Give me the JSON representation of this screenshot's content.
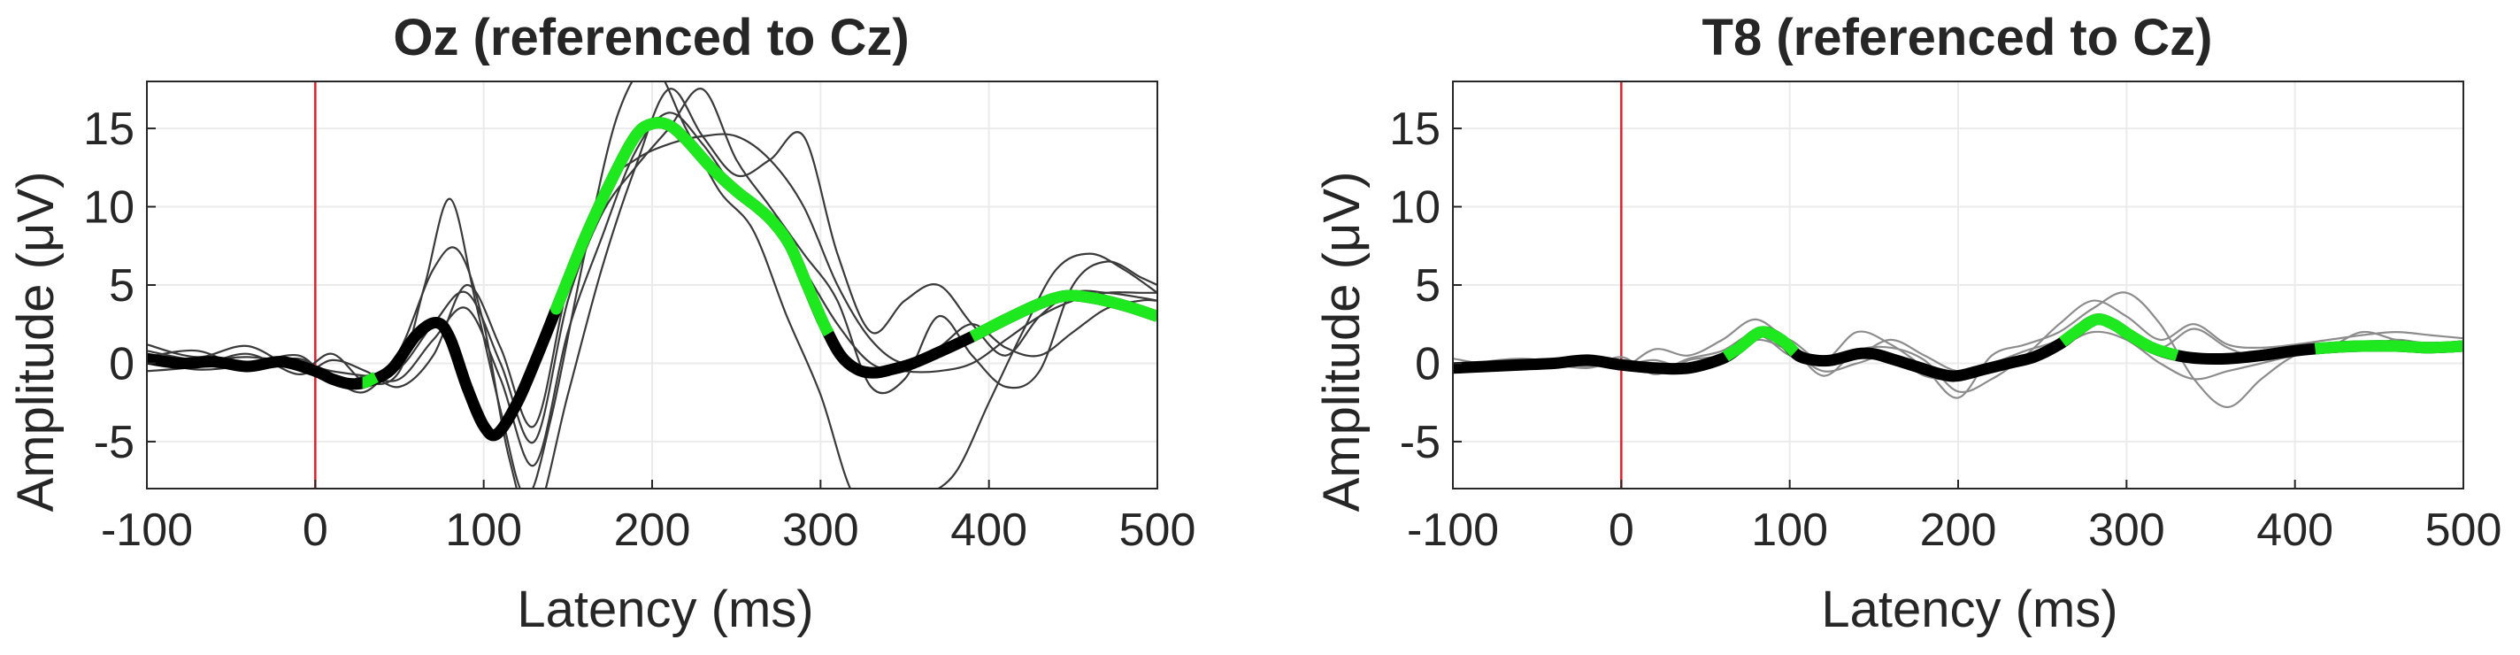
{
  "chart_data": [
    {
      "type": "line",
      "title": "Oz (referenced to Cz)",
      "xlabel": "Latency (ms)",
      "ylabel": "Amplitude (μV)",
      "xlim": [
        -100,
        500
      ],
      "ylim": [
        -8,
        18
      ],
      "xticks": [
        -100,
        0,
        100,
        200,
        300,
        400,
        500
      ],
      "yticks": [
        -5,
        0,
        5,
        10,
        15
      ],
      "grid": true,
      "stimulus_onset_ms": 0,
      "individual_traces": [
        {
          "name": "trace-1",
          "x": [
            -100,
            -70,
            -40,
            -10,
            10,
            30,
            50,
            65,
            80,
            95,
            110,
            125,
            140,
            160,
            180,
            200,
            220,
            240,
            260,
            280,
            300,
            320,
            340,
            360,
            380,
            400,
            420,
            440,
            460,
            480,
            500
          ],
          "y": [
            1.2,
            0.4,
            1.1,
            -0.4,
            0.6,
            -1.2,
            -0.5,
            5.0,
            10.5,
            4.0,
            -3.0,
            -8.5,
            -3.5,
            7.0,
            16.0,
            19.0,
            15.0,
            11.0,
            8.5,
            3.0,
            -2.0,
            -8.5,
            -9.0,
            -8.5,
            -7.0,
            -2.5,
            2.0,
            6.0,
            7.0,
            6.0,
            4.5
          ]
        },
        {
          "name": "trace-2",
          "x": [
            -100,
            -70,
            -40,
            -10,
            10,
            30,
            50,
            70,
            85,
            100,
            115,
            130,
            150,
            170,
            190,
            210,
            230,
            250,
            270,
            290,
            310,
            330,
            350,
            370,
            390,
            410,
            430,
            450,
            470,
            490,
            500
          ],
          "y": [
            0.4,
            0.8,
            -0.3,
            0.3,
            -1.0,
            -1.8,
            0.8,
            6.0,
            7.2,
            2.5,
            -6.0,
            -10.0,
            -2.0,
            6.0,
            12.5,
            17.5,
            14.5,
            12.0,
            13.0,
            14.5,
            7.0,
            2.0,
            4.0,
            5.0,
            2.5,
            0.5,
            3.0,
            4.5,
            4.5,
            4.2,
            4.0
          ]
        },
        {
          "name": "trace-3",
          "x": [
            -100,
            -70,
            -40,
            -10,
            10,
            30,
            50,
            70,
            90,
            110,
            130,
            150,
            170,
            190,
            210,
            230,
            250,
            270,
            290,
            310,
            330,
            350,
            370,
            390,
            410,
            430,
            450,
            470,
            490,
            500
          ],
          "y": [
            -0.5,
            -0.2,
            0.6,
            -0.7,
            0.2,
            -0.5,
            -1.5,
            0.5,
            5.0,
            1.0,
            -4.0,
            5.0,
            11.0,
            13.0,
            14.0,
            14.5,
            14.5,
            13.0,
            10.0,
            5.0,
            1.5,
            0.0,
            1.0,
            2.5,
            1.0,
            0.5,
            2.0,
            3.5,
            4.0,
            4.0
          ]
        },
        {
          "name": "trace-4",
          "x": [
            -100,
            -70,
            -40,
            -10,
            10,
            30,
            50,
            70,
            90,
            110,
            130,
            150,
            170,
            190,
            210,
            230,
            250,
            270,
            290,
            310,
            330,
            350,
            370,
            390,
            410,
            430,
            450,
            470,
            490,
            500
          ],
          "y": [
            0.2,
            -0.4,
            -0.1,
            0.5,
            -1.2,
            -0.8,
            -0.3,
            2.5,
            4.5,
            0.0,
            -5.0,
            4.0,
            9.5,
            12.5,
            15.0,
            17.5,
            13.0,
            10.0,
            7.0,
            4.0,
            -1.5,
            -1.0,
            3.0,
            0.5,
            -1.5,
            -0.5,
            5.0,
            6.5,
            5.5,
            5.0
          ]
        },
        {
          "name": "trace-5",
          "x": [
            -100,
            -70,
            -40,
            -10,
            10,
            30,
            50,
            70,
            90,
            110,
            130,
            150,
            170,
            190,
            210,
            230,
            250,
            270,
            290,
            310,
            330,
            350,
            370,
            390,
            410,
            430,
            450,
            470,
            490,
            500
          ],
          "y": [
            0.8,
            0.2,
            0.4,
            0.0,
            -0.5,
            -0.8,
            -1.0,
            1.5,
            3.5,
            -1.0,
            -6.5,
            2.0,
            8.0,
            13.5,
            16.0,
            14.0,
            11.0,
            9.0,
            6.0,
            2.5,
            0.0,
            -0.5,
            -0.5,
            0.0,
            1.5,
            3.0,
            4.0,
            4.5,
            4.5,
            4.5
          ]
        }
      ],
      "average": {
        "x": [
          -100,
          -80,
          -60,
          -40,
          -20,
          0,
          10,
          20,
          30,
          45,
          60,
          72,
          80,
          90,
          100,
          108,
          120,
          132,
          145,
          160,
          175,
          190,
          200,
          210,
          220,
          235,
          250,
          262,
          272,
          282,
          292,
          302,
          312,
          322,
          332,
          342,
          355,
          370,
          390,
          410,
          430,
          445,
          460,
          480,
          500
        ],
        "y": [
          0.3,
          0.0,
          0.1,
          -0.2,
          0.1,
          -0.5,
          -1.0,
          -1.3,
          -1.2,
          -0.4,
          1.8,
          2.6,
          1.6,
          -1.5,
          -4.0,
          -4.5,
          -2.5,
          0.5,
          4.0,
          8.0,
          11.5,
          14.5,
          15.3,
          15.2,
          14.3,
          12.5,
          11.0,
          10.0,
          9.0,
          7.5,
          5.0,
          2.5,
          0.5,
          -0.4,
          -0.6,
          -0.4,
          0.0,
          0.7,
          1.7,
          2.8,
          3.8,
          4.3,
          4.2,
          3.7,
          3.0
        ]
      },
      "significant_windows_ms": [
        [
          28,
          36
        ],
        [
          143,
          305
        ],
        [
          390,
          500
        ]
      ]
    },
    {
      "type": "line",
      "title": "T8 (referenced to Cz)",
      "xlabel": "Latency (ms)",
      "ylabel": "Amplitude (μV)",
      "xlim": [
        -100,
        500
      ],
      "ylim": [
        -8,
        18
      ],
      "xticks": [
        -100,
        0,
        100,
        200,
        300,
        400,
        500
      ],
      "yticks": [
        -5,
        0,
        5,
        10,
        15
      ],
      "grid": true,
      "stimulus_onset_ms": 0,
      "individual_traces": [
        {
          "name": "trace-1",
          "x": [
            -100,
            -60,
            -20,
            0,
            20,
            40,
            60,
            80,
            100,
            120,
            140,
            160,
            180,
            200,
            220,
            240,
            260,
            280,
            300,
            320,
            340,
            360,
            380,
            400,
            420,
            440,
            460,
            480,
            500
          ],
          "y": [
            -0.4,
            0.2,
            0.1,
            -0.3,
            0.9,
            0.5,
            1.5,
            2.8,
            1.2,
            -0.8,
            0.8,
            1.0,
            0.2,
            -1.8,
            -1.0,
            0.5,
            2.5,
            4.0,
            3.0,
            1.5,
            2.5,
            1.2,
            1.0,
            1.2,
            1.5,
            1.8,
            2.0,
            1.8,
            1.6
          ]
        },
        {
          "name": "trace-2",
          "x": [
            -100,
            -60,
            -20,
            0,
            20,
            40,
            60,
            80,
            100,
            120,
            140,
            160,
            180,
            200,
            220,
            240,
            260,
            280,
            300,
            320,
            340,
            360,
            380,
            400,
            420,
            440,
            460,
            480,
            500
          ],
          "y": [
            -0.2,
            0.3,
            -0.2,
            0.2,
            -0.5,
            0.3,
            0.8,
            2.0,
            1.5,
            0.2,
            2.0,
            1.2,
            -0.3,
            -2.2,
            0.5,
            1.2,
            2.0,
            3.5,
            4.5,
            2.5,
            -1.0,
            -2.8,
            -1.0,
            0.5,
            1.0,
            2.0,
            1.5,
            1.2,
            1.0
          ]
        },
        {
          "name": "trace-3",
          "x": [
            -100,
            -60,
            -20,
            0,
            20,
            40,
            60,
            80,
            100,
            120,
            140,
            160,
            180,
            200,
            220,
            240,
            260,
            280,
            300,
            320,
            340,
            360,
            380,
            400,
            420,
            440,
            460,
            480,
            500
          ],
          "y": [
            0.3,
            -0.3,
            0.4,
            -0.1,
            0.2,
            -0.4,
            0.0,
            1.8,
            0.5,
            0.0,
            0.5,
            1.5,
            0.5,
            -0.5,
            0.0,
            0.8,
            1.5,
            3.0,
            2.0,
            1.0,
            2.2,
            1.0,
            0.3,
            0.5,
            0.8,
            1.0,
            1.5,
            1.2,
            1.0
          ]
        },
        {
          "name": "trace-4",
          "x": [
            -100,
            -60,
            -20,
            0,
            20,
            40,
            60,
            80,
            100,
            120,
            140,
            160,
            180,
            200,
            220,
            240,
            260,
            280,
            300,
            320,
            340,
            360,
            380,
            400,
            420,
            440,
            460,
            480,
            500
          ],
          "y": [
            -0.6,
            0.1,
            -0.3,
            0.4,
            -0.7,
            0.2,
            0.5,
            1.5,
            0.8,
            -0.5,
            0.0,
            0.5,
            -0.8,
            -1.0,
            -0.5,
            0.0,
            1.0,
            2.0,
            1.5,
            0.0,
            -1.0,
            -0.5,
            0.0,
            0.5,
            0.8,
            1.0,
            1.2,
            1.0,
            1.2
          ]
        }
      ],
      "average": {
        "x": [
          -100,
          -80,
          -60,
          -40,
          -20,
          0,
          20,
          40,
          60,
          70,
          83,
          95,
          105,
          115,
          125,
          140,
          150,
          160,
          175,
          190,
          200,
          215,
          230,
          245,
          260,
          270,
          282,
          292,
          302,
          315,
          330,
          345,
          360,
          380,
          400,
          420,
          440,
          460,
          480,
          500
        ],
        "y": [
          -0.3,
          -0.2,
          -0.1,
          0.0,
          0.2,
          -0.1,
          -0.3,
          -0.3,
          0.3,
          1.0,
          2.0,
          1.5,
          0.5,
          0.2,
          0.2,
          0.6,
          0.6,
          0.3,
          -0.2,
          -0.7,
          -0.8,
          -0.4,
          0.0,
          0.4,
          1.2,
          2.0,
          2.8,
          2.5,
          1.8,
          1.0,
          0.5,
          0.3,
          0.3,
          0.5,
          0.8,
          1.0,
          1.1,
          1.1,
          1.0,
          1.1
        ]
      },
      "significant_windows_ms": [
        [
          62,
          103
        ],
        [
          262,
          330
        ],
        [
          412,
          500
        ]
      ]
    }
  ]
}
